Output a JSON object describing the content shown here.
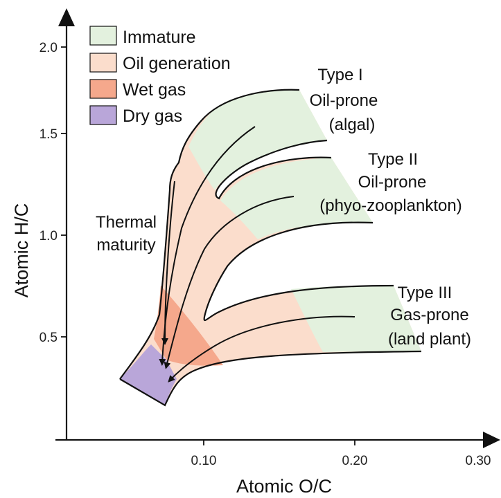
{
  "axes": {
    "x_label": "Atomic O/C",
    "y_label": "Atomic H/C",
    "x_ticks": [
      "0.10",
      "0.20",
      "0.30"
    ],
    "y_ticks": [
      "2.0",
      "1.5",
      "1.0",
      "0.5"
    ]
  },
  "legend": {
    "items": [
      {
        "label": "Immature",
        "color": "#e3f1de"
      },
      {
        "label": "Oil generation",
        "color": "#fbddcc"
      },
      {
        "label": "Wet gas",
        "color": "#f5a88c"
      },
      {
        "label": "Dry gas",
        "color": "#b9a6d9"
      }
    ]
  },
  "annotations": {
    "thermal_maturity": [
      "Thermal",
      "maturity"
    ],
    "type1": [
      "Type I",
      "Oil-prone",
      "(algal)"
    ],
    "type2": [
      "Type II",
      "Oil-prone",
      "(phyo-zooplankton)"
    ],
    "type3": [
      "Type III",
      "Gas-prone",
      "(land plant)"
    ]
  },
  "colors": {
    "immature": "#e3f1de",
    "oil_generation": "#fbddcc",
    "wet_gas": "#f5a88c",
    "dry_gas": "#b9a6d9",
    "outline": "#111111"
  }
}
